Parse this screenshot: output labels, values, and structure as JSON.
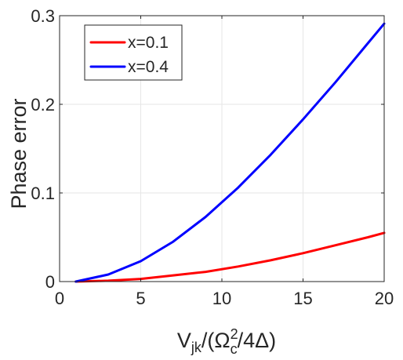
{
  "chart_data": {
    "type": "line",
    "xlabel_parts": {
      "base": "V",
      "base_sub": "jk",
      "open": "/(Ω",
      "omega_sup": "2",
      "omega_sub": "c",
      "close": "/4Δ)"
    },
    "ylabel": "Phase error",
    "xlim": [
      0,
      20
    ],
    "ylim": [
      0,
      0.3
    ],
    "xticks": [
      0,
      5,
      10,
      15,
      20
    ],
    "xtick_labels": [
      "0",
      "5",
      "10",
      "15",
      "20"
    ],
    "yticks": [
      0,
      0.1,
      0.2,
      0.3
    ],
    "ytick_labels": [
      "0",
      "0.1",
      "0.2",
      "0.3"
    ],
    "grid": true,
    "legend_position": "top-left",
    "series": [
      {
        "name": "x=0.1",
        "color": "#ff0000",
        "x": [
          1,
          3,
          5,
          7,
          9,
          11,
          13,
          15,
          17,
          19,
          20
        ],
        "y": [
          0.0,
          0.001,
          0.003,
          0.007,
          0.011,
          0.017,
          0.024,
          0.032,
          0.041,
          0.05,
          0.055
        ]
      },
      {
        "name": "x=0.4",
        "color": "#0000ff",
        "x": [
          1,
          3,
          5,
          7,
          9,
          11,
          13,
          15,
          17,
          19,
          20
        ],
        "y": [
          0.0,
          0.008,
          0.023,
          0.045,
          0.073,
          0.106,
          0.143,
          0.183,
          0.225,
          0.269,
          0.291
        ]
      }
    ]
  }
}
